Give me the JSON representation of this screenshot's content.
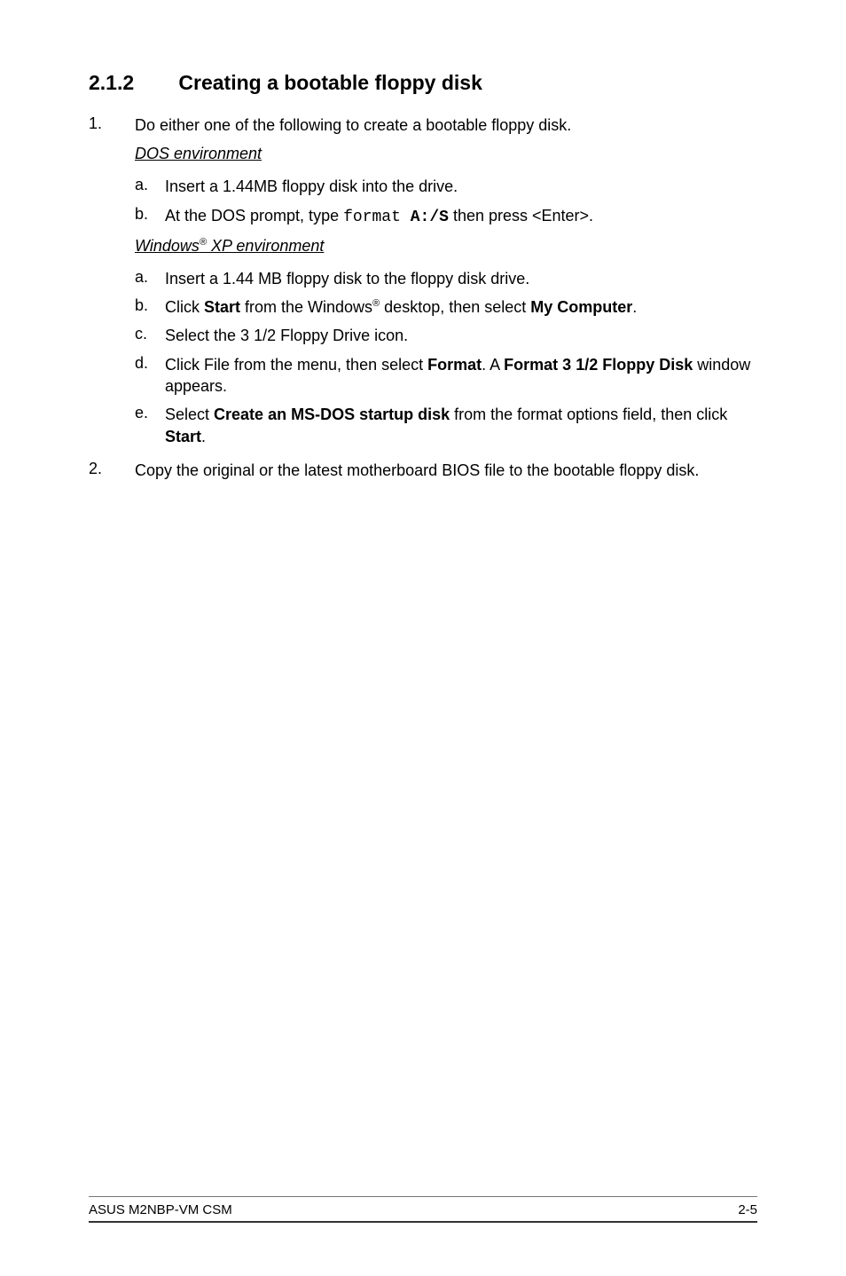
{
  "heading": {
    "number": "2.1.2",
    "title": "Creating a bootable floppy disk"
  },
  "steps": [
    {
      "num": "1.",
      "text": "Do either one of the following to create a bootable floppy disk.",
      "sections": [
        {
          "subhead_pre": "DOS environment",
          "subhead_sup": "",
          "subhead_post": "",
          "items": [
            {
              "a": "a.",
              "parts": [
                {
                  "t": "Insert a 1.44MB floppy disk into the drive."
                }
              ]
            },
            {
              "a": "b.",
              "parts": [
                {
                  "t": "At the DOS prompt, type "
                },
                {
                  "t": "format ",
                  "mono": true
                },
                {
                  "t": "A:/S",
                  "mono": true,
                  "bold": true
                },
                {
                  "t": " then press <Enter>."
                }
              ]
            }
          ]
        },
        {
          "subhead_pre": "Windows",
          "subhead_sup": "®",
          "subhead_post": " XP environment",
          "items": [
            {
              "a": "a.",
              "parts": [
                {
                  "t": "Insert a 1.44 MB floppy disk to the floppy disk drive."
                }
              ]
            },
            {
              "a": "b.",
              "parts": [
                {
                  "t": "Click "
                },
                {
                  "t": "Start",
                  "bold": true
                },
                {
                  "t": " from the Windows"
                },
                {
                  "t": "®",
                  "sup": true
                },
                {
                  "t": " desktop, then select "
                },
                {
                  "t": "My Computer",
                  "bold": true
                },
                {
                  "t": "."
                }
              ]
            },
            {
              "a": "c.",
              "parts": [
                {
                  "t": "Select the 3 1/2 Floppy Drive icon."
                }
              ]
            },
            {
              "a": "d.",
              "parts": [
                {
                  "t": "Click File from the menu, then select "
                },
                {
                  "t": "Format",
                  "bold": true
                },
                {
                  "t": ". A "
                },
                {
                  "t": "Format 3 1/2 Floppy Disk",
                  "bold": true
                },
                {
                  "t": " window appears."
                }
              ]
            },
            {
              "a": "e.",
              "parts": [
                {
                  "t": "Select "
                },
                {
                  "t": "Create an MS-DOS startup disk",
                  "bold": true
                },
                {
                  "t": " from the format options field, then click "
                },
                {
                  "t": "Start",
                  "bold": true
                },
                {
                  "t": "."
                }
              ]
            }
          ]
        }
      ]
    },
    {
      "num": "2.",
      "text": "Copy the original or the latest motherboard BIOS file to the bootable floppy disk.",
      "sections": []
    }
  ],
  "footer": {
    "left": "ASUS M2NBP-VM CSM",
    "right": "2-5"
  },
  "colors": {
    "text": "#000000",
    "bg": "#ffffff",
    "rule1": "#777777",
    "rule2": "#333333"
  },
  "fonts": {
    "body_pt": 18,
    "heading_pt": 23,
    "footer_pt": 15
  }
}
